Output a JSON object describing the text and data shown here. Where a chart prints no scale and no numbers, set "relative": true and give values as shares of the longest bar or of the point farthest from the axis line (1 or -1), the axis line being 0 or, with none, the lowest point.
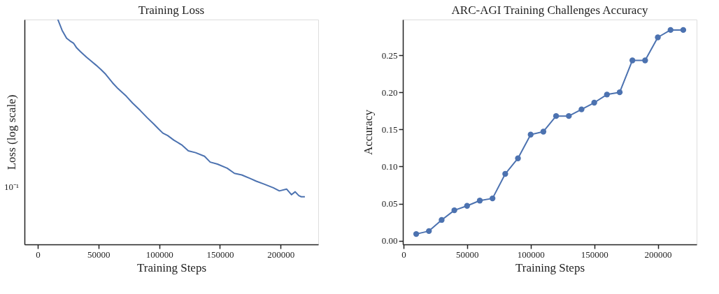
{
  "chart_data": [
    {
      "type": "line",
      "title": "Training Loss",
      "xlabel": "Training Steps",
      "ylabel": "Loss (log scale)",
      "relative": true,
      "annotations": [
        "10⁻¹"
      ],
      "color": "#4c72b0",
      "x": [
        16500,
        20000,
        23700,
        26500,
        29400,
        32000,
        35000,
        40000,
        44500,
        48000,
        52100,
        56000,
        61500,
        66000,
        72900,
        78000,
        84300,
        90000,
        95600,
        99400,
        103000,
        107000,
        112000,
        118400,
        124000,
        130000,
        137300,
        142000,
        148000,
        156000,
        162000,
        168000,
        175000,
        180000,
        186000,
        194000,
        199000,
        205000,
        209000,
        212000,
        215000,
        217000,
        220000
      ],
      "values": [
        1.0,
        0.952,
        0.917,
        0.905,
        0.895,
        0.874,
        0.858,
        0.833,
        0.813,
        0.797,
        0.777,
        0.756,
        0.719,
        0.693,
        0.659,
        0.629,
        0.596,
        0.564,
        0.535,
        0.514,
        0.495,
        0.484,
        0.464,
        0.443,
        0.416,
        0.408,
        0.392,
        0.366,
        0.357,
        0.339,
        0.316,
        0.309,
        0.293,
        0.281,
        0.269,
        0.252,
        0.238,
        0.246,
        0.221,
        0.234,
        0.217,
        0.212,
        0.212
      ],
      "xlim": [
        -11000,
        231000
      ],
      "xticks": [
        0,
        50000,
        100000,
        150000,
        200000
      ]
    },
    {
      "type": "line",
      "title": "ARC-AGI Training Challenges Accuracy",
      "xlabel": "Training Steps",
      "ylabel": "Accuracy",
      "marker": "circle",
      "color": "#4c72b0",
      "x": [
        10000,
        20000,
        30000,
        40000,
        50000,
        60000,
        70000,
        80000,
        90000,
        100000,
        110000,
        120000,
        130000,
        140000,
        150000,
        160000,
        170000,
        180000,
        190000,
        200000,
        210000,
        220000
      ],
      "values": [
        0.009,
        0.013,
        0.028,
        0.041,
        0.047,
        0.054,
        0.057,
        0.09,
        0.111,
        0.143,
        0.147,
        0.168,
        0.168,
        0.177,
        0.186,
        0.197,
        0.2,
        0.243,
        0.243,
        0.274,
        0.284,
        0.284
      ],
      "xlim": [
        -500,
        230500
      ],
      "xticks": [
        0,
        50000,
        100000,
        150000,
        200000
      ],
      "ylim": [
        -0.005,
        0.298
      ],
      "yticks": [
        {
          "value": 0,
          "label": "0.00"
        },
        {
          "value": 0.05,
          "label": "0.05"
        },
        {
          "value": 0.1,
          "label": "0.10"
        },
        {
          "value": 0.15,
          "label": "0.15"
        },
        {
          "value": 0.2,
          "label": "0.20"
        },
        {
          "value": 0.25,
          "label": "0.25"
        }
      ]
    }
  ]
}
